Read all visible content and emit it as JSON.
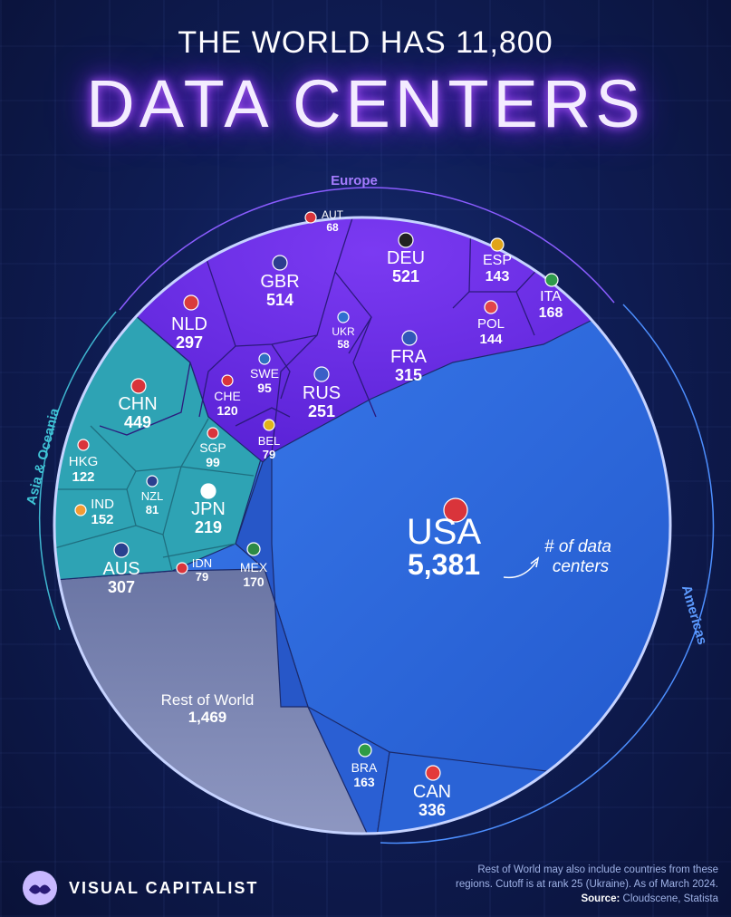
{
  "title": {
    "line1": "THE WORLD HAS 11,800",
    "line2": "DATA CENTERS"
  },
  "chart_data": {
    "type": "voronoi-treemap",
    "regions": [
      {
        "label": "Europe"
      },
      {
        "label": "Asia & Oceania"
      },
      {
        "label": "Americas"
      }
    ],
    "cells": [
      {
        "code": "USA",
        "value": "5,381",
        "region": "Americas",
        "color": "#2f6fe0"
      },
      {
        "code": "CAN",
        "value": "336",
        "region": "Americas",
        "color": "#2a63d6"
      },
      {
        "code": "BRA",
        "value": "163",
        "region": "Americas",
        "color": "#2a63d6"
      },
      {
        "code": "MEX",
        "value": "170",
        "region": "Americas",
        "color": "#2a5fd3"
      },
      {
        "code": "DEU",
        "value": "521",
        "region": "Europe",
        "color": "#6b2ee6"
      },
      {
        "code": "GBR",
        "value": "514",
        "region": "Europe",
        "color": "#6b2ee6"
      },
      {
        "code": "FRA",
        "value": "315",
        "region": "Europe",
        "color": "#6b2ee6"
      },
      {
        "code": "NLD",
        "value": "297",
        "region": "Europe",
        "color": "#6b2ee6"
      },
      {
        "code": "RUS",
        "value": "251",
        "region": "Europe",
        "color": "#6b2ee6"
      },
      {
        "code": "ITA",
        "value": "168",
        "region": "Europe",
        "color": "#6b2ee6"
      },
      {
        "code": "POL",
        "value": "144",
        "region": "Europe",
        "color": "#6b2ee6"
      },
      {
        "code": "ESP",
        "value": "143",
        "region": "Europe",
        "color": "#6b2ee6"
      },
      {
        "code": "CHE",
        "value": "120",
        "region": "Europe",
        "color": "#6b2ee6"
      },
      {
        "code": "SWE",
        "value": "95",
        "region": "Europe",
        "color": "#6b2ee6"
      },
      {
        "code": "BEL",
        "value": "79",
        "region": "Europe",
        "color": "#6b2ee6"
      },
      {
        "code": "AUT",
        "value": "68",
        "region": "Europe",
        "color": "#6b2ee6"
      },
      {
        "code": "UKR",
        "value": "58",
        "region": "Europe",
        "color": "#6b2ee6"
      },
      {
        "code": "CHN",
        "value": "449",
        "region": "Asia & Oceania",
        "color": "#2ea3b4"
      },
      {
        "code": "AUS",
        "value": "307",
        "region": "Asia & Oceania",
        "color": "#2ea3b4"
      },
      {
        "code": "JPN",
        "value": "219",
        "region": "Asia & Oceania",
        "color": "#2ea3b4"
      },
      {
        "code": "IND",
        "value": "152",
        "region": "Asia & Oceania",
        "color": "#2ea3b4"
      },
      {
        "code": "HKG",
        "value": "122",
        "region": "Asia & Oceania",
        "color": "#2ea3b4"
      },
      {
        "code": "SGP",
        "value": "99",
        "region": "Asia & Oceania",
        "color": "#2ea3b4"
      },
      {
        "code": "NZL",
        "value": "81",
        "region": "Asia & Oceania",
        "color": "#2ea3b4"
      },
      {
        "code": "IDN",
        "value": "79",
        "region": "Asia & Oceania",
        "color": "#2ea3b4"
      },
      {
        "code": "Rest of World",
        "value": "1,469",
        "region": "",
        "color": "#7f88b3"
      }
    ],
    "annotation": "# of data centers"
  },
  "footnote": {
    "text": "Rest of World may also include countries from these regions. Cutoff is at rank 25 (Ukraine). As of March 2024.",
    "source_label": "Source:",
    "source": "Cloudscene, Statista"
  },
  "logo": {
    "text": "VISUAL CAPITALIST"
  },
  "colors": {
    "europe": "#6b2ee6",
    "asia": "#2ea3b4",
    "americas": "#2f6fe0",
    "rest": "#7f88b3",
    "neon": "#b15cff"
  }
}
